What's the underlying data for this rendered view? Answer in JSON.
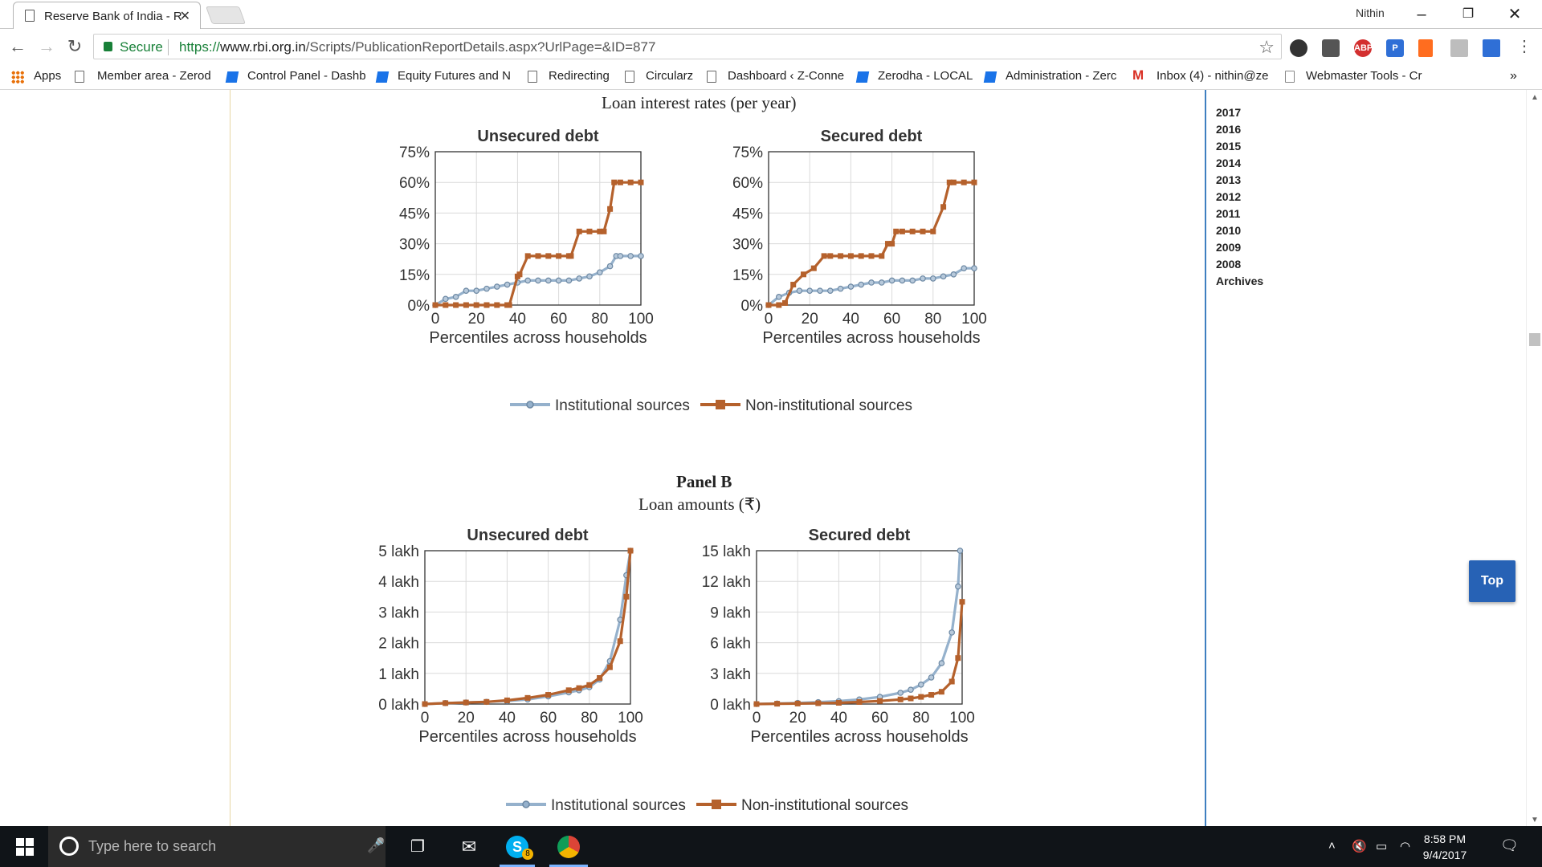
{
  "browser": {
    "tab_title": "Reserve Bank of India - R",
    "profile_name": "Nithin",
    "secure_label": "Secure",
    "url_scheme": "https://",
    "url_host": "www.rbi.org.in",
    "url_path": "/Scripts/PublicationReportDetails.aspx?UrlPage=&ID=877",
    "extensions": [
      "ABP"
    ]
  },
  "bookmarks": [
    {
      "label": "Apps",
      "icon": "apps-grid-icon"
    },
    {
      "label": "Member area - Zerod",
      "icon": "page-icon"
    },
    {
      "label": "Control Panel - Dashb",
      "icon": "bookmark-icon"
    },
    {
      "label": "Equity Futures and N",
      "icon": "bookmark-icon"
    },
    {
      "label": "Redirecting",
      "icon": "page-icon"
    },
    {
      "label": "Circularz",
      "icon": "page-icon"
    },
    {
      "label": "Dashboard ‹ Z-Conne",
      "icon": "page-icon"
    },
    {
      "label": "Zerodha - LOCAL",
      "icon": "bookmark-icon"
    },
    {
      "label": "Administration - Zerc",
      "icon": "bookmark-icon"
    },
    {
      "label": "Inbox (4) - nithin@ze",
      "icon": "gmail-icon"
    },
    {
      "label": "Webmaster Tools - Cr",
      "icon": "webmaster-icon"
    }
  ],
  "page": {
    "panel_a_subtitle": "Loan interest rates (per year)",
    "panel_b_title": "Panel B",
    "panel_b_subtitle": "Loan amounts (₹)",
    "top_button": "Top"
  },
  "sidebar": {
    "years": [
      "2017",
      "2016",
      "2015",
      "2014",
      "2013",
      "2012",
      "2011",
      "2010",
      "2009",
      "2008",
      "Archives"
    ]
  },
  "legend": {
    "institutional": "Institutional sources",
    "non_institutional": "Non-institutional sources"
  },
  "chart_data": [
    {
      "type": "line",
      "title": "Unsecured debt",
      "xlabel": "Percentiles across households",
      "ylabel": "",
      "xlim": [
        0,
        100
      ],
      "ylim": [
        0,
        75
      ],
      "yticks": [
        "0%",
        "15%",
        "30%",
        "45%",
        "60%",
        "75%"
      ],
      "xticks": [
        "0",
        "20",
        "40",
        "60",
        "80",
        "100"
      ],
      "grid": true,
      "series": [
        {
          "name": "Institutional sources",
          "color": "#95b1cc",
          "points": [
            [
              0,
              0
            ],
            [
              5,
              3
            ],
            [
              10,
              4
            ],
            [
              15,
              7
            ],
            [
              20,
              7
            ],
            [
              25,
              8
            ],
            [
              30,
              9
            ],
            [
              35,
              10
            ],
            [
              40,
              11
            ],
            [
              45,
              12
            ],
            [
              50,
              12
            ],
            [
              55,
              12
            ],
            [
              60,
              12
            ],
            [
              65,
              12
            ],
            [
              70,
              13
            ],
            [
              75,
              14
            ],
            [
              80,
              16
            ],
            [
              85,
              19
            ],
            [
              88,
              24
            ],
            [
              90,
              24
            ],
            [
              95,
              24
            ],
            [
              100,
              24
            ]
          ]
        },
        {
          "name": "Non-institutional sources",
          "color": "#b5612c",
          "points": [
            [
              0,
              0
            ],
            [
              5,
              0
            ],
            [
              10,
              0
            ],
            [
              15,
              0
            ],
            [
              20,
              0
            ],
            [
              25,
              0
            ],
            [
              30,
              0
            ],
            [
              35,
              0
            ],
            [
              36,
              0
            ],
            [
              40,
              14
            ],
            [
              41,
              15
            ],
            [
              45,
              24
            ],
            [
              50,
              24
            ],
            [
              55,
              24
            ],
            [
              60,
              24
            ],
            [
              65,
              24
            ],
            [
              66,
              24
            ],
            [
              70,
              36
            ],
            [
              75,
              36
            ],
            [
              80,
              36
            ],
            [
              82,
              36
            ],
            [
              85,
              47
            ],
            [
              87,
              60
            ],
            [
              90,
              60
            ],
            [
              95,
              60
            ],
            [
              100,
              60
            ]
          ]
        }
      ]
    },
    {
      "type": "line",
      "title": "Secured debt",
      "xlabel": "Percentiles across households",
      "ylabel": "",
      "xlim": [
        0,
        100
      ],
      "ylim": [
        0,
        75
      ],
      "yticks": [
        "0%",
        "15%",
        "30%",
        "45%",
        "60%",
        "75%"
      ],
      "xticks": [
        "0",
        "20",
        "40",
        "60",
        "80",
        "100"
      ],
      "grid": true,
      "series": [
        {
          "name": "Institutional sources",
          "color": "#95b1cc",
          "points": [
            [
              0,
              0
            ],
            [
              5,
              4
            ],
            [
              10,
              6
            ],
            [
              15,
              7
            ],
            [
              20,
              7
            ],
            [
              25,
              7
            ],
            [
              30,
              7
            ],
            [
              35,
              8
            ],
            [
              40,
              9
            ],
            [
              45,
              10
            ],
            [
              50,
              11
            ],
            [
              55,
              11
            ],
            [
              60,
              12
            ],
            [
              65,
              12
            ],
            [
              70,
              12
            ],
            [
              75,
              13
            ],
            [
              80,
              13
            ],
            [
              85,
              14
            ],
            [
              90,
              15
            ],
            [
              95,
              18
            ],
            [
              100,
              18
            ]
          ]
        },
        {
          "name": "Non-institutional sources",
          "color": "#b5612c",
          "points": [
            [
              0,
              0
            ],
            [
              5,
              0
            ],
            [
              8,
              1
            ],
            [
              12,
              10
            ],
            [
              17,
              15
            ],
            [
              22,
              18
            ],
            [
              27,
              24
            ],
            [
              30,
              24
            ],
            [
              35,
              24
            ],
            [
              40,
              24
            ],
            [
              45,
              24
            ],
            [
              50,
              24
            ],
            [
              55,
              24
            ],
            [
              58,
              30
            ],
            [
              60,
              30
            ],
            [
              62,
              36
            ],
            [
              65,
              36
            ],
            [
              70,
              36
            ],
            [
              75,
              36
            ],
            [
              80,
              36
            ],
            [
              85,
              48
            ],
            [
              88,
              60
            ],
            [
              90,
              60
            ],
            [
              95,
              60
            ],
            [
              100,
              60
            ]
          ]
        }
      ]
    },
    {
      "type": "line",
      "title": "Unsecured debt",
      "xlabel": "Percentiles across households",
      "ylabel": "",
      "xlim": [
        0,
        100
      ],
      "ylim": [
        0,
        5
      ],
      "yticks": [
        "0 lakh",
        "1 lakh",
        "2 lakh",
        "3 lakh",
        "4 lakh",
        "5 lakh"
      ],
      "xticks": [
        "0",
        "20",
        "40",
        "60",
        "80",
        "100"
      ],
      "grid": true,
      "series": [
        {
          "name": "Institutional sources",
          "color": "#95b1cc",
          "points": [
            [
              0,
              0
            ],
            [
              10,
              0.03
            ],
            [
              20,
              0.05
            ],
            [
              30,
              0.07
            ],
            [
              40,
              0.1
            ],
            [
              50,
              0.15
            ],
            [
              60,
              0.25
            ],
            [
              70,
              0.38
            ],
            [
              75,
              0.45
            ],
            [
              80,
              0.55
            ],
            [
              85,
              0.8
            ],
            [
              90,
              1.4
            ],
            [
              95,
              2.75
            ],
            [
              98,
              4.2
            ],
            [
              100,
              5
            ]
          ]
        },
        {
          "name": "Non-institutional sources",
          "color": "#b5612c",
          "points": [
            [
              0,
              0
            ],
            [
              10,
              0.03
            ],
            [
              20,
              0.05
            ],
            [
              30,
              0.07
            ],
            [
              40,
              0.12
            ],
            [
              50,
              0.2
            ],
            [
              60,
              0.3
            ],
            [
              70,
              0.45
            ],
            [
              75,
              0.52
            ],
            [
              80,
              0.62
            ],
            [
              85,
              0.85
            ],
            [
              90,
              1.2
            ],
            [
              95,
              2.05
            ],
            [
              98,
              3.5
            ],
            [
              100,
              5
            ]
          ]
        }
      ]
    },
    {
      "type": "line",
      "title": "Secured debt",
      "xlabel": "Percentiles across households",
      "ylabel": "",
      "xlim": [
        0,
        100
      ],
      "ylim": [
        0,
        15
      ],
      "yticks": [
        "0 lakh",
        "3 lakh",
        "6 lakh",
        "9 lakh",
        "12 lakh",
        "15 lakh"
      ],
      "xticks": [
        "0",
        "20",
        "40",
        "60",
        "80",
        "100"
      ],
      "grid": true,
      "series": [
        {
          "name": "Institutional sources",
          "color": "#95b1cc",
          "points": [
            [
              0,
              0
            ],
            [
              10,
              0.05
            ],
            [
              20,
              0.1
            ],
            [
              30,
              0.18
            ],
            [
              40,
              0.28
            ],
            [
              50,
              0.45
            ],
            [
              60,
              0.7
            ],
            [
              70,
              1.1
            ],
            [
              75,
              1.4
            ],
            [
              80,
              1.9
            ],
            [
              85,
              2.6
            ],
            [
              90,
              4.0
            ],
            [
              95,
              7.0
            ],
            [
              98,
              11.5
            ],
            [
              99,
              15
            ]
          ]
        },
        {
          "name": "Non-institutional sources",
          "color": "#b5612c",
          "points": [
            [
              0,
              0
            ],
            [
              10,
              0.03
            ],
            [
              20,
              0.05
            ],
            [
              30,
              0.08
            ],
            [
              40,
              0.12
            ],
            [
              50,
              0.2
            ],
            [
              60,
              0.3
            ],
            [
              70,
              0.45
            ],
            [
              75,
              0.55
            ],
            [
              80,
              0.7
            ],
            [
              85,
              0.9
            ],
            [
              90,
              1.2
            ],
            [
              95,
              2.2
            ],
            [
              98,
              4.5
            ],
            [
              100,
              10
            ]
          ]
        }
      ]
    }
  ],
  "taskbar": {
    "search_placeholder": "Type here to search",
    "time": "8:58 PM",
    "date": "9/4/2017",
    "skype_badge": "8"
  }
}
